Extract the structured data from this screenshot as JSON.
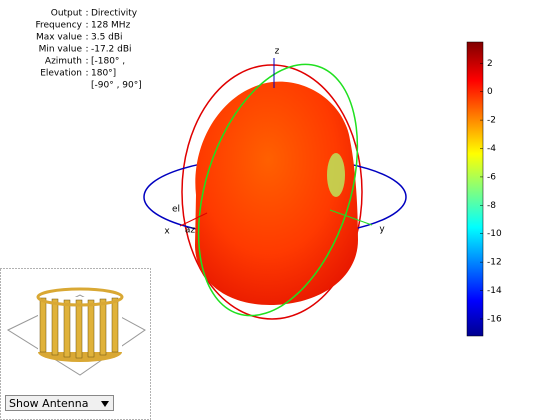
{
  "chart_data": {
    "type": "pattern3d",
    "info": [
      {
        "label": "Output",
        "separator": ":",
        "value": "Directivity"
      },
      {
        "label": "Frequency",
        "separator": ":",
        "value": "128 MHz"
      },
      {
        "label": "Max value",
        "separator": ":",
        "value": "3.5 dBi"
      },
      {
        "label": "Min value",
        "separator": ":",
        "value": "-17.2 dBi"
      },
      {
        "label": "Azimuth",
        "separator": ":",
        "value": "[-180° ,"
      },
      {
        "label": "Elevation",
        "separator": ":",
        "value": "180°]"
      },
      {
        "label": null,
        "separator": null,
        "value": "[-90° , 90°]"
      }
    ],
    "axis_labels": {
      "x": "x",
      "y": "y",
      "z": "z",
      "az": "az",
      "el": "el"
    },
    "colorbar": {
      "clim": [
        -17.2,
        3.5
      ],
      "ticks": [
        2,
        0,
        -2,
        -4,
        -6,
        -8,
        -10,
        -12,
        -14,
        -16
      ],
      "colormap": "jet"
    },
    "control": {
      "label": "Show Antenna"
    }
  }
}
